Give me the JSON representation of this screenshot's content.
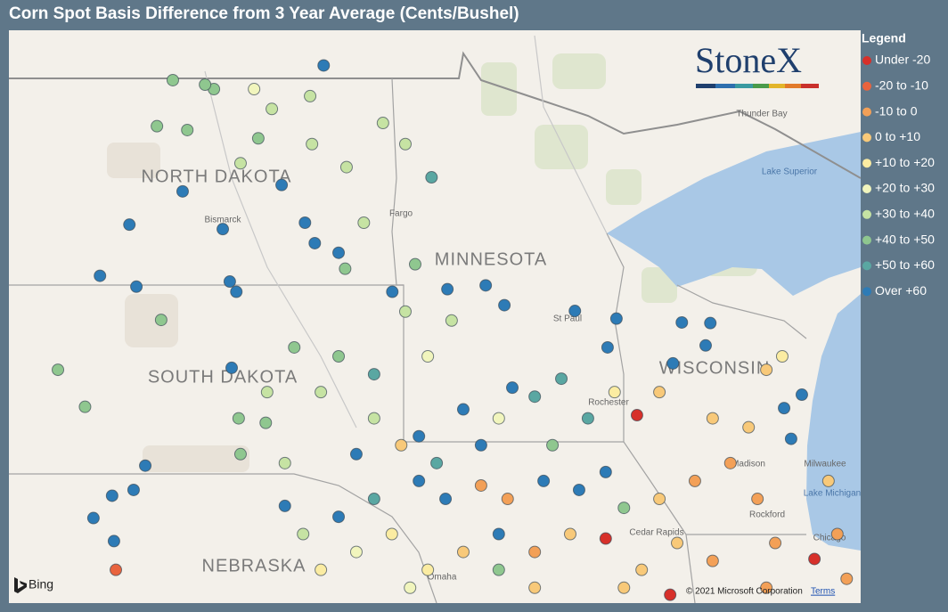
{
  "title": "Corn Spot Basis Difference from 3 Year Average (Cents/Bushel)",
  "legend": {
    "title": "Legend",
    "items": [
      {
        "label": "Under -20",
        "color": "#d7302a"
      },
      {
        "label": "-20 to -10",
        "color": "#e9633d"
      },
      {
        "label": "-10 to 0",
        "color": "#f3a057"
      },
      {
        "label": "0 to +10",
        "color": "#f8c979"
      },
      {
        "label": "+10 to +20",
        "color": "#fbeca2"
      },
      {
        "label": "+20 to +30",
        "color": "#f1f5bd"
      },
      {
        "label": "+30 to +40",
        "color": "#c6e3a3"
      },
      {
        "label": "+40 to +50",
        "color": "#8fc78f"
      },
      {
        "label": "+50 to +60",
        "color": "#5aa7a2"
      },
      {
        "label": "Over +60",
        "color": "#2d7bb6"
      }
    ]
  },
  "map": {
    "lon_range": [
      -104.9,
      -86.66
    ],
    "lat_range": [
      40.97,
      49.93
    ],
    "logo": "StoneX",
    "attribution": "Bing",
    "copyright": "© 2021 Microsoft Corporation",
    "terms": "Terms",
    "labels": [
      {
        "text": "NORTH DAKOTA",
        "kind": "state"
      },
      {
        "text": "SOUTH DAKOTA",
        "kind": "state"
      },
      {
        "text": "MINNESOTA",
        "kind": "state"
      },
      {
        "text": "WISCONSIN",
        "kind": "state"
      },
      {
        "text": "NEBRASKA",
        "kind": "state"
      },
      {
        "text": "Bismarck",
        "kind": "city"
      },
      {
        "text": "Fargo",
        "kind": "city"
      },
      {
        "text": "Thunder Bay",
        "kind": "city"
      },
      {
        "text": "Lake Superior",
        "kind": "water"
      },
      {
        "text": "Milwaukee",
        "kind": "city"
      },
      {
        "text": "Lake Michigan",
        "kind": "water"
      },
      {
        "text": "Chicago",
        "kind": "city"
      },
      {
        "text": "Madison",
        "kind": "city"
      },
      {
        "text": "Rochester",
        "kind": "city"
      },
      {
        "text": "Cedar Rapids",
        "kind": "city"
      },
      {
        "text": "Rockford",
        "kind": "city"
      },
      {
        "text": "Omaha",
        "kind": "city"
      },
      {
        "text": "St Paul",
        "kind": "city"
      }
    ],
    "points": [
      [
        -98.16,
        49.38,
        9
      ],
      [
        -101.18,
        47.41,
        9
      ],
      [
        -102.32,
        46.89,
        9
      ],
      [
        -100.32,
        46.82,
        9
      ],
      [
        -102.95,
        46.09,
        9
      ],
      [
        -102.17,
        45.92,
        9
      ],
      [
        -100.17,
        46.0,
        9
      ],
      [
        -100.03,
        45.84,
        9
      ],
      [
        -99.06,
        47.51,
        9
      ],
      [
        -98.56,
        46.92,
        9
      ],
      [
        -98.35,
        46.6,
        9
      ],
      [
        -103.85,
        44.62,
        7
      ],
      [
        -103.27,
        44.04,
        7
      ],
      [
        -101.64,
        45.4,
        7
      ],
      [
        -100.13,
        44.65,
        9
      ],
      [
        -99.98,
        43.86,
        7
      ],
      [
        -99.4,
        43.79,
        7
      ],
      [
        -101.98,
        43.12,
        9
      ],
      [
        -102.23,
        42.74,
        9
      ],
      [
        -102.69,
        42.65,
        9
      ],
      [
        -103.09,
        42.3,
        9
      ],
      [
        -102.65,
        41.94,
        9
      ],
      [
        -102.61,
        41.49,
        1
      ],
      [
        -101.39,
        49.15,
        7
      ],
      [
        -100.51,
        49.01,
        7
      ],
      [
        -101.73,
        48.43,
        7
      ],
      [
        -101.08,
        48.37,
        7
      ],
      [
        -99.94,
        47.85,
        6
      ],
      [
        -99.56,
        48.24,
        7
      ],
      [
        -99.27,
        48.7,
        6
      ],
      [
        -98.45,
        48.9,
        6
      ],
      [
        -98.41,
        48.15,
        6
      ],
      [
        -99.65,
        49.01,
        5
      ],
      [
        -97.67,
        47.79,
        6
      ],
      [
        -96.89,
        48.48,
        6
      ],
      [
        -96.41,
        48.15,
        6
      ],
      [
        -95.85,
        47.63,
        8
      ],
      [
        -97.3,
        46.92,
        6
      ],
      [
        -97.84,
        46.45,
        9
      ],
      [
        -97.7,
        46.2,
        7
      ],
      [
        -96.69,
        45.84,
        9
      ],
      [
        -96.2,
        46.27,
        7
      ],
      [
        -95.51,
        45.88,
        9
      ],
      [
        -94.69,
        45.94,
        9
      ],
      [
        -94.29,
        45.63,
        9
      ],
      [
        -96.41,
        45.53,
        6
      ],
      [
        -95.42,
        45.39,
        6
      ],
      [
        -95.93,
        44.83,
        5
      ],
      [
        -92.78,
        45.54,
        9
      ],
      [
        -91.89,
        45.42,
        9
      ],
      [
        -92.08,
        44.97,
        9
      ],
      [
        -90.49,
        45.36,
        9
      ],
      [
        -89.88,
        45.35,
        9
      ],
      [
        -90.68,
        44.72,
        9
      ],
      [
        -89.98,
        45.0,
        9
      ],
      [
        -88.34,
        44.83,
        4
      ],
      [
        -88.68,
        44.62,
        3
      ],
      [
        -87.92,
        44.23,
        9
      ],
      [
        -88.3,
        44.02,
        9
      ],
      [
        -88.15,
        43.54,
        9
      ],
      [
        -87.65,
        41.66,
        0
      ],
      [
        -91.45,
        43.91,
        0
      ],
      [
        -90.74,
        41.1,
        0
      ],
      [
        -92.12,
        41.98,
        0
      ],
      [
        -93.64,
        44.2,
        8
      ],
      [
        -93.07,
        44.48,
        8
      ],
      [
        -94.12,
        44.34,
        9
      ],
      [
        -95.17,
        44.0,
        9
      ],
      [
        -96.12,
        43.58,
        9
      ],
      [
        -96.5,
        43.44,
        3
      ],
      [
        -95.74,
        43.16,
        8
      ],
      [
        -96.12,
        42.88,
        9
      ],
      [
        -95.55,
        42.6,
        9
      ],
      [
        -94.79,
        42.81,
        2
      ],
      [
        -94.22,
        42.6,
        2
      ],
      [
        -93.45,
        42.88,
        9
      ],
      [
        -92.69,
        42.74,
        9
      ],
      [
        -92.12,
        43.02,
        9
      ],
      [
        -91.73,
        42.46,
        7
      ],
      [
        -90.97,
        42.6,
        3
      ],
      [
        -90.21,
        42.88,
        2
      ],
      [
        -89.45,
        43.16,
        2
      ],
      [
        -88.87,
        42.6,
        2
      ],
      [
        -88.49,
        41.91,
        2
      ],
      [
        -89.83,
        41.63,
        2
      ],
      [
        -90.59,
        41.91,
        3
      ],
      [
        -91.35,
        41.49,
        3
      ],
      [
        -92.88,
        42.05,
        3
      ],
      [
        -93.64,
        41.77,
        2
      ],
      [
        -94.41,
        42.05,
        9
      ],
      [
        -95.17,
        41.77,
        3
      ],
      [
        -95.93,
        41.49,
        4
      ],
      [
        -96.7,
        42.05,
        4
      ],
      [
        -97.46,
        41.77,
        5
      ],
      [
        -98.22,
        41.49,
        4
      ],
      [
        -98.6,
        42.05,
        6
      ],
      [
        -97.84,
        42.32,
        9
      ],
      [
        -98.99,
        42.49,
        9
      ],
      [
        -97.46,
        43.3,
        9
      ],
      [
        -97.08,
        43.86,
        6
      ],
      [
        -98.22,
        44.27,
        6
      ],
      [
        -97.84,
        44.83,
        7
      ],
      [
        -97.08,
        44.55,
        8
      ],
      [
        -94.79,
        43.44,
        9
      ],
      [
        -94.41,
        43.86,
        5
      ],
      [
        -93.26,
        43.44,
        7
      ],
      [
        -92.5,
        43.86,
        8
      ],
      [
        -91.93,
        44.27,
        4
      ],
      [
        -90.97,
        44.27,
        3
      ],
      [
        -89.83,
        43.86,
        3
      ],
      [
        -89.06,
        43.72,
        3
      ],
      [
        -87.35,
        42.88,
        3
      ],
      [
        -87.16,
        42.05,
        2
      ],
      [
        -86.96,
        41.35,
        2
      ],
      [
        -88.68,
        41.21,
        2
      ],
      [
        -91.73,
        41.21,
        3
      ],
      [
        -93.64,
        41.21,
        3
      ],
      [
        -94.41,
        41.49,
        7
      ],
      [
        -96.31,
        41.21,
        5
      ],
      [
        -97.08,
        42.6,
        8
      ],
      [
        -99.37,
        44.27,
        6
      ],
      [
        -98.99,
        43.16,
        6
      ],
      [
        -99.94,
        43.3,
        7
      ],
      [
        -100.7,
        49.08,
        7
      ],
      [
        -98.79,
        44.97,
        7
      ]
    ]
  }
}
